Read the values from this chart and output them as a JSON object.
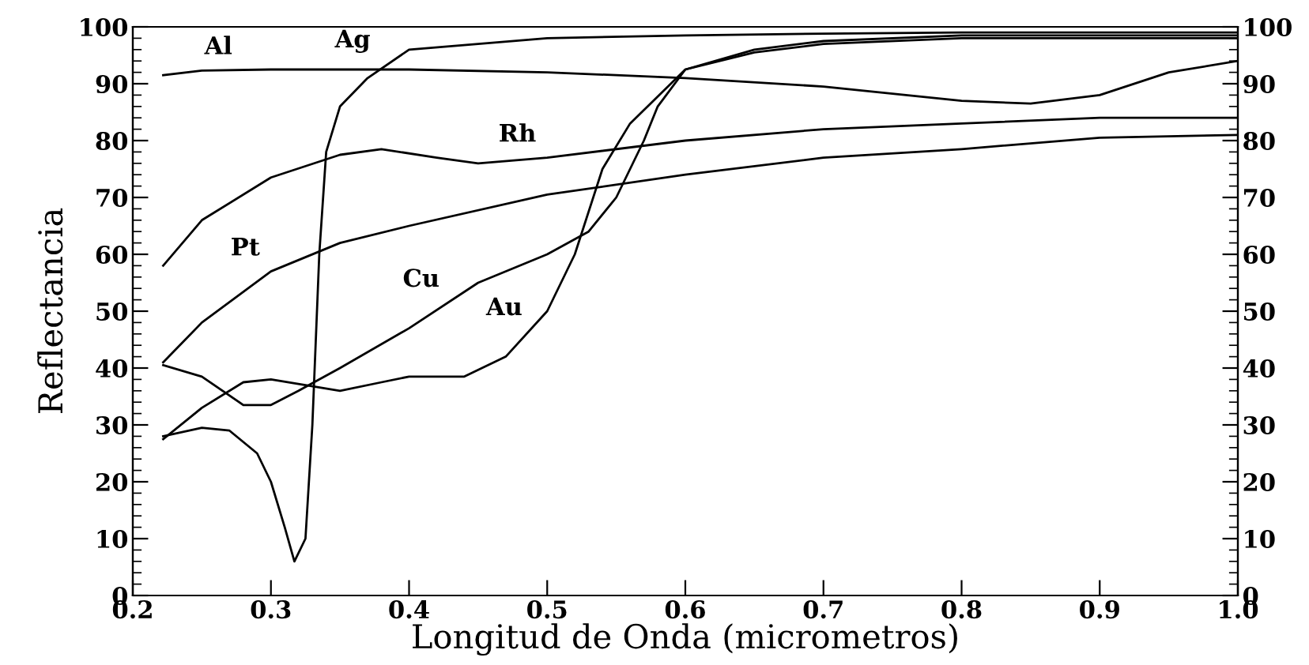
{
  "chart_data": {
    "type": "line",
    "xlabel": "Longitud de Onda (micrometros)",
    "ylabel": "Reflectancia",
    "xlim": [
      0.2,
      1.0
    ],
    "xticks": [
      {
        "value": 0.2,
        "label": "0.2"
      },
      {
        "value": 0.3,
        "label": "0.3"
      },
      {
        "value": 0.4,
        "label": "0.4"
      },
      {
        "value": 0.5,
        "label": "0.5"
      },
      {
        "value": 0.6,
        "label": "0.6"
      },
      {
        "value": 0.7,
        "label": "0.7"
      },
      {
        "value": 0.8,
        "label": "0.8"
      },
      {
        "value": 0.9,
        "label": "0.9"
      },
      {
        "value": 1.0,
        "label": "1.0"
      }
    ],
    "ylim": [
      0,
      100
    ],
    "yticks": [
      0,
      10,
      20,
      30,
      40,
      50,
      60,
      70,
      80,
      90,
      100
    ],
    "y2lim": [
      0,
      100
    ],
    "y2ticks": [
      0,
      10,
      20,
      30,
      40,
      50,
      60,
      70,
      80,
      90,
      100
    ],
    "grid": false,
    "legend": false,
    "marker": "none",
    "line_style": "solid",
    "series": [
      {
        "color": "#000000",
        "x": [
          0.222,
          0.25,
          0.3,
          0.4,
          0.5,
          0.6,
          0.7,
          0.8,
          0.85,
          0.9,
          0.95,
          1.0
        ],
        "values": [
          91.5,
          92.3,
          92.5,
          92.5,
          92,
          91,
          89.5,
          87,
          86.5,
          88,
          92,
          94
        ]
      },
      {
        "color": "#000000",
        "x": [
          0.222,
          0.25,
          0.27,
          0.29,
          0.3,
          0.31,
          0.317,
          0.325,
          0.33,
          0.335,
          0.34,
          0.35,
          0.37,
          0.4,
          0.45,
          0.5,
          0.6,
          0.7,
          0.8,
          1.0
        ],
        "values": [
          28,
          29.5,
          29,
          25,
          20,
          12,
          6,
          10,
          30,
          60,
          78,
          86,
          91,
          96,
          97,
          98,
          98.5,
          98.8,
          99,
          99
        ]
      },
      {
        "color": "#000000",
        "x": [
          0.222,
          0.25,
          0.3,
          0.35,
          0.38,
          0.42,
          0.45,
          0.5,
          0.6,
          0.7,
          0.8,
          0.9,
          1.0
        ],
        "values": [
          58,
          66,
          73.5,
          77.5,
          78.5,
          77,
          76,
          77,
          80,
          82,
          83,
          84,
          84
        ]
      },
      {
        "color": "#000000",
        "x": [
          0.222,
          0.25,
          0.3,
          0.35,
          0.4,
          0.5,
          0.6,
          0.7,
          0.8,
          0.9,
          1.0
        ],
        "values": [
          41,
          48,
          57,
          62,
          65,
          70.5,
          74,
          77,
          78.5,
          80.5,
          81
        ]
      },
      {
        "color": "#000000",
        "x": [
          0.222,
          0.25,
          0.28,
          0.3,
          0.32,
          0.35,
          0.4,
          0.45,
          0.5,
          0.53,
          0.55,
          0.57,
          0.58,
          0.6,
          0.65,
          0.7,
          0.8,
          1.0
        ],
        "values": [
          40.5,
          38.5,
          33.5,
          33.5,
          36,
          40,
          47,
          55,
          60,
          64,
          70,
          80,
          86,
          92.5,
          96,
          97.5,
          98.5,
          98.5
        ]
      },
      {
        "color": "#000000",
        "x": [
          0.222,
          0.25,
          0.28,
          0.3,
          0.35,
          0.38,
          0.4,
          0.44,
          0.47,
          0.5,
          0.52,
          0.54,
          0.56,
          0.6,
          0.65,
          0.7,
          0.8,
          1.0
        ],
        "values": [
          27.5,
          33,
          37.5,
          38,
          36,
          37.5,
          38.5,
          38.5,
          42,
          50,
          60,
          75,
          83,
          92.5,
          95.5,
          97,
          98,
          98
        ]
      }
    ],
    "annotations": [
      {
        "text": "Al",
        "x": 0.28,
        "y": 92.4
      },
      {
        "text": "Ag",
        "x": 0.38,
        "y": 93.5
      },
      {
        "text": "Rh",
        "x": 0.5,
        "y": 77
      },
      {
        "text": "Pt",
        "x": 0.3,
        "y": 57
      },
      {
        "text": "Cu",
        "x": 0.43,
        "y": 51.5
      },
      {
        "text": "Au",
        "x": 0.49,
        "y": 46.5
      }
    ]
  }
}
